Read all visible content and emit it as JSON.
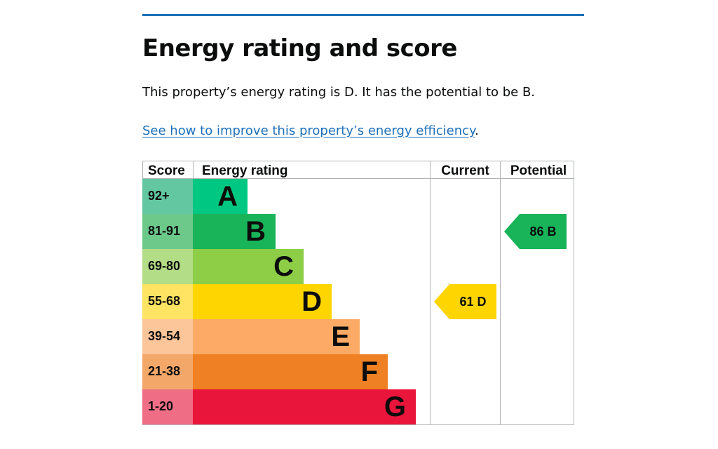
{
  "section": {
    "title": "Energy rating and score",
    "summary": "This property’s energy rating is D. It has the potential to be B.",
    "improve_link": "See how to improve this property’s energy efficiency",
    "improve_link_suffix": ".",
    "accent_color": "#1d70b8"
  },
  "chart_data": {
    "type": "table",
    "headers": {
      "score": "Score",
      "rating": "Energy rating",
      "current": "Current",
      "potential": "Potential"
    },
    "bands": [
      {
        "range": "92+",
        "letter": "A",
        "color": "#00c781",
        "score_bg": "#63c7a1"
      },
      {
        "range": "81-91",
        "letter": "B",
        "color": "#19b459",
        "score_bg": "#6dc98a"
      },
      {
        "range": "69-80",
        "letter": "C",
        "color": "#8dce46",
        "score_bg": "#b3dd86"
      },
      {
        "range": "55-68",
        "letter": "D",
        "color": "#ffd500",
        "score_bg": "#ffe362"
      },
      {
        "range": "39-54",
        "letter": "E",
        "color": "#fcaa65",
        "score_bg": "#fdc59a"
      },
      {
        "range": "21-38",
        "letter": "F",
        "color": "#ef8023",
        "score_bg": "#f3a86a"
      },
      {
        "range": "1-20",
        "letter": "G",
        "color": "#e9153b",
        "score_bg": "#ef6e86"
      }
    ],
    "current": {
      "score": 61,
      "letter": "D",
      "label": "61 D"
    },
    "potential": {
      "score": 86,
      "letter": "B",
      "label": "86 B"
    }
  }
}
